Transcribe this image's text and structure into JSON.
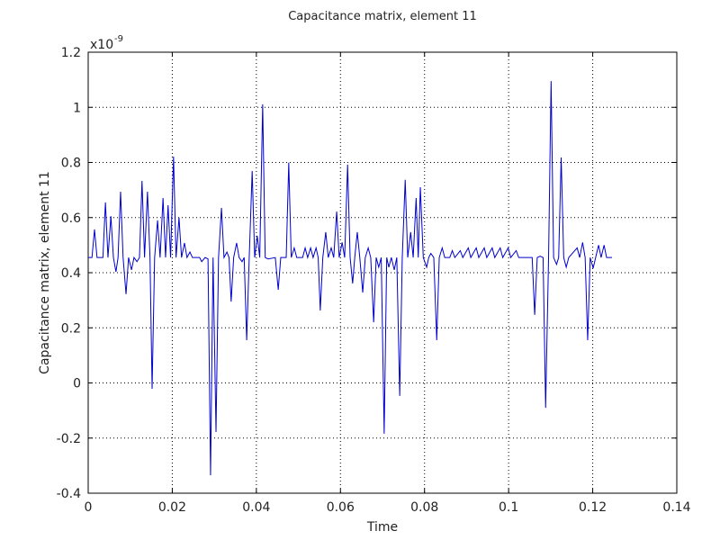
{
  "chart_data": {
    "type": "line",
    "title": "Capacitance matrix, element 11",
    "x_label": "Time",
    "y_label": "Capacitance matrix, element 11",
    "y_multiplier": {
      "base": "x10",
      "exponent": "-9"
    },
    "xlim": [
      0,
      0.14
    ],
    "xticks": [
      0,
      0.02,
      0.04,
      0.06,
      0.08,
      0.1,
      0.12,
      0.14
    ],
    "ylim": [
      -0.4,
      1.2
    ],
    "yticks": [
      -0.4,
      -0.2,
      0,
      0.2,
      0.4,
      0.6,
      0.8,
      1,
      1.2
    ],
    "grid": true,
    "x": [
      0,
      0.0009,
      0.0015,
      0.0021,
      0.0035,
      0.0041,
      0.0047,
      0.0054,
      0.006,
      0.0066,
      0.0071,
      0.0077,
      0.0083,
      0.009,
      0.0096,
      0.0103,
      0.0109,
      0.0116,
      0.0122,
      0.0128,
      0.0134,
      0.0141,
      0.0147,
      0.0152,
      0.0158,
      0.0165,
      0.0171,
      0.0178,
      0.0184,
      0.019,
      0.0196,
      0.0203,
      0.0209,
      0.0216,
      0.0222,
      0.0229,
      0.0235,
      0.0242,
      0.0248,
      0.0265,
      0.027,
      0.0278,
      0.0285,
      0.0291,
      0.0297,
      0.0304,
      0.031,
      0.0317,
      0.0323,
      0.033,
      0.0335,
      0.034,
      0.0346,
      0.0353,
      0.0359,
      0.0366,
      0.0371,
      0.0377,
      0.0383,
      0.039,
      0.0396,
      0.0402,
      0.0408,
      0.0415,
      0.0421,
      0.0428,
      0.0445,
      0.0452,
      0.0458,
      0.0471,
      0.0477,
      0.0483,
      0.049,
      0.0496,
      0.051,
      0.0516,
      0.0522,
      0.0529,
      0.0535,
      0.0542,
      0.0547,
      0.0552,
      0.0558,
      0.0565,
      0.0571,
      0.0578,
      0.0584,
      0.0591,
      0.0597,
      0.0604,
      0.061,
      0.0617,
      0.0623,
      0.0629,
      0.0634,
      0.064,
      0.0646,
      0.0653,
      0.0659,
      0.0666,
      0.0672,
      0.0679,
      0.0685,
      0.0691,
      0.0697,
      0.0704,
      0.071,
      0.0715,
      0.0721,
      0.0728,
      0.0734,
      0.0741,
      0.0747,
      0.0754,
      0.076,
      0.0767,
      0.0773,
      0.078,
      0.0785,
      0.079,
      0.0797,
      0.0805,
      0.081,
      0.0815,
      0.0822,
      0.0829,
      0.0835,
      0.0842,
      0.0848,
      0.086,
      0.0866,
      0.0872,
      0.0885,
      0.0891,
      0.0904,
      0.091,
      0.0923,
      0.0929,
      0.0942,
      0.0948,
      0.0961,
      0.0967,
      0.098,
      0.0986,
      0.0999,
      0.1005,
      0.1018,
      0.1024,
      0.1056,
      0.1062,
      0.1068,
      0.1075,
      0.1082,
      0.1088,
      0.1095,
      0.1101,
      0.1107,
      0.1114,
      0.1119,
      0.1125,
      0.1131,
      0.1137,
      0.1143,
      0.1163,
      0.1169,
      0.1176,
      0.1182,
      0.1188,
      0.1194,
      0.1201,
      0.1207,
      0.1214,
      0.122,
      0.1227,
      0.1233,
      0.1246
    ],
    "series": [
      {
        "name": "Capacitance matrix, element 11",
        "color": "#0000cc",
        "values": [
          0.455,
          0.455,
          0.557,
          0.455,
          0.455,
          0.655,
          0.455,
          0.605,
          0.455,
          0.403,
          0.455,
          0.694,
          0.455,
          0.322,
          0.455,
          0.41,
          0.455,
          0.44,
          0.455,
          0.733,
          0.455,
          0.694,
          0.455,
          -0.021,
          0.455,
          0.59,
          0.455,
          0.671,
          0.455,
          0.645,
          0.455,
          0.821,
          0.455,
          0.6,
          0.455,
          0.508,
          0.455,
          0.475,
          0.455,
          0.455,
          0.44,
          0.455,
          0.45,
          -0.335,
          0.455,
          -0.178,
          0.455,
          0.635,
          0.455,
          0.475,
          0.455,
          0.295,
          0.455,
          0.508,
          0.455,
          0.44,
          0.455,
          0.155,
          0.455,
          0.769,
          0.455,
          0.534,
          0.455,
          1.011,
          0.455,
          0.45,
          0.455,
          0.338,
          0.455,
          0.455,
          0.799,
          0.455,
          0.49,
          0.455,
          0.455,
          0.49,
          0.455,
          0.49,
          0.455,
          0.49,
          0.455,
          0.263,
          0.455,
          0.547,
          0.455,
          0.49,
          0.455,
          0.622,
          0.455,
          0.51,
          0.455,
          0.792,
          0.455,
          0.361,
          0.455,
          0.547,
          0.455,
          0.328,
          0.455,
          0.49,
          0.455,
          0.22,
          0.455,
          0.42,
          0.455,
          -0.184,
          0.455,
          0.42,
          0.455,
          0.41,
          0.455,
          -0.047,
          0.455,
          0.737,
          0.455,
          0.547,
          0.455,
          0.671,
          0.455,
          0.71,
          0.455,
          0.42,
          0.455,
          0.47,
          0.455,
          0.155,
          0.455,
          0.49,
          0.455,
          0.455,
          0.48,
          0.455,
          0.48,
          0.455,
          0.49,
          0.455,
          0.49,
          0.455,
          0.49,
          0.455,
          0.49,
          0.455,
          0.49,
          0.455,
          0.49,
          0.455,
          0.48,
          0.455,
          0.455,
          0.247,
          0.455,
          0.46,
          0.455,
          -0.09,
          0.455,
          1.095,
          0.455,
          0.43,
          0.455,
          0.818,
          0.455,
          0.42,
          0.455,
          0.49,
          0.455,
          0.51,
          0.455,
          0.155,
          0.455,
          0.416,
          0.455,
          0.5,
          0.455,
          0.5,
          0.455,
          0.455
        ]
      }
    ]
  }
}
